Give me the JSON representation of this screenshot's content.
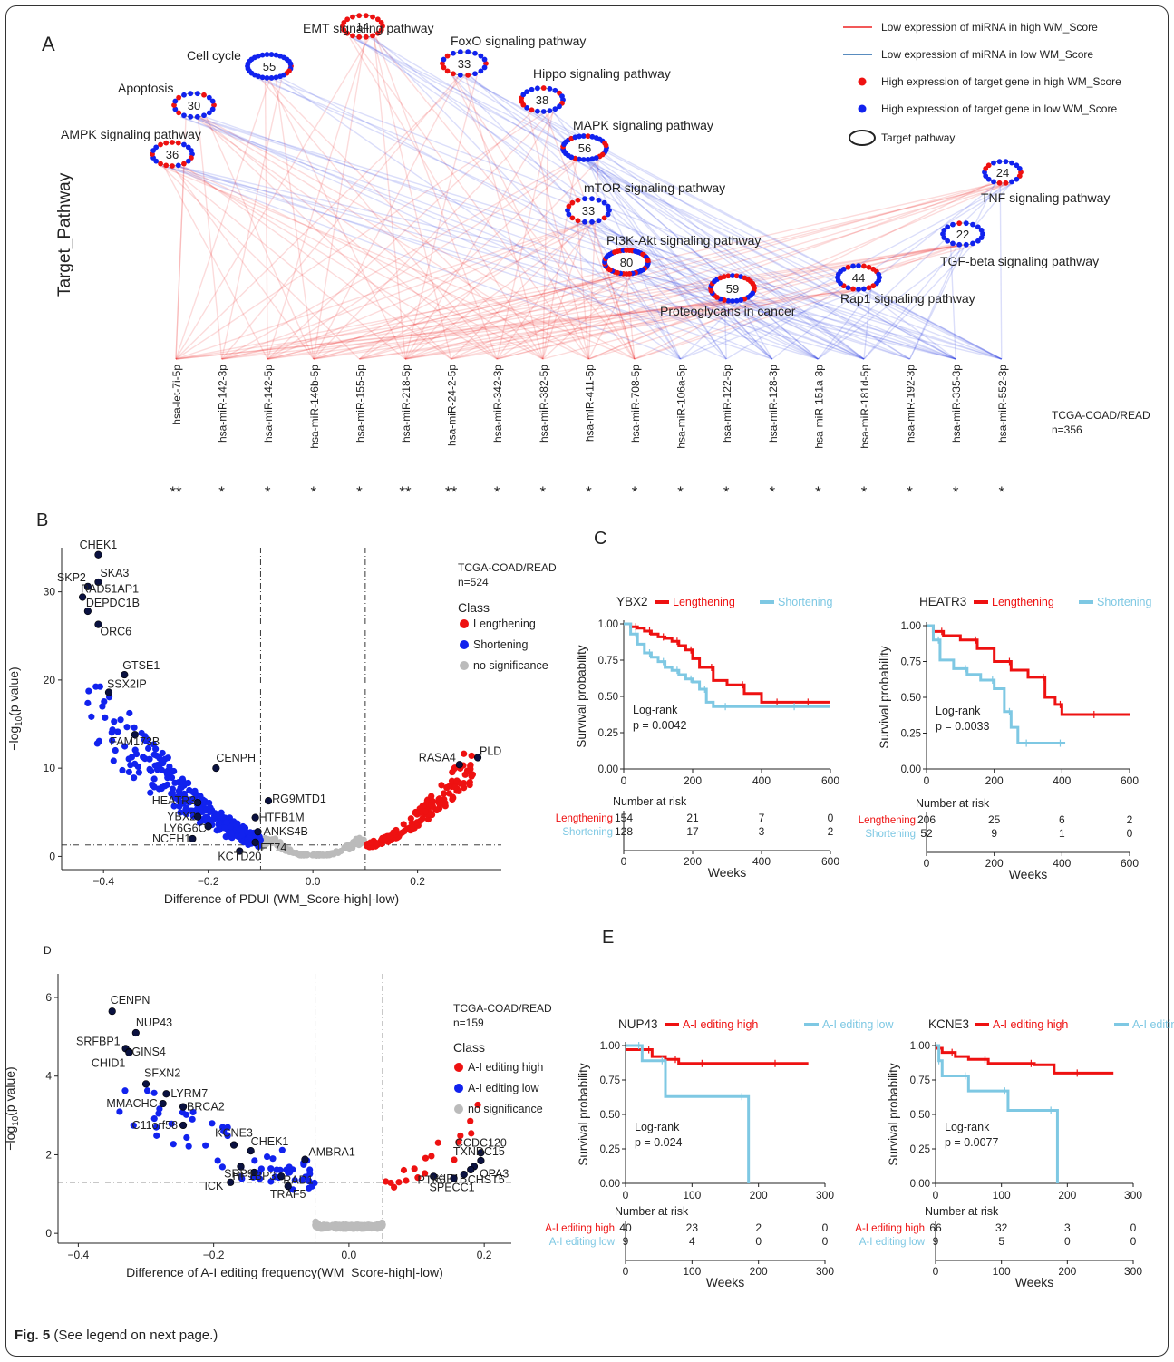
{
  "caption": {
    "label": "Fig. 5",
    "text": " (See legend on next page.)"
  },
  "panel_labels": {
    "a": "A",
    "b": "B",
    "c": "C",
    "d": "D",
    "e": "E"
  },
  "panel_a": {
    "ylabel": "Target_Pathway",
    "dataset": [
      "TCGA-COAD/READ",
      "n=356"
    ],
    "legend": [
      {
        "kind": "line",
        "color": "#ee2222",
        "label": "Low expression of miRNA in high WM_Score"
      },
      {
        "kind": "line",
        "color": "#2266aa",
        "label": "Low expression of miRNA in low WM_Score"
      },
      {
        "kind": "dot",
        "color": "#ee1111",
        "label": "High expression of target gene in high WM_Score"
      },
      {
        "kind": "dot",
        "color": "#1122ee",
        "label": "High expression of target gene in low WM_Score"
      },
      {
        "kind": "ellipse",
        "color": "#222222",
        "label": "Target pathway"
      }
    ],
    "pathways": [
      {
        "name": "AMPK signaling pathway",
        "count": "36",
        "red_frac": 0.5
      },
      {
        "name": "Apoptosis",
        "count": "30",
        "red_frac": 0.5
      },
      {
        "name": "Cell cycle",
        "count": "55",
        "red_frac": 0.2
      },
      {
        "name": "EMT signaling pathway",
        "count": "14",
        "red_frac": 0.9
      },
      {
        "name": "FoxO signaling pathway",
        "count": "33",
        "red_frac": 0.35
      },
      {
        "name": "Hippo signaling pathway",
        "count": "38",
        "red_frac": 0.35
      },
      {
        "name": "MAPK signaling pathway",
        "count": "56",
        "red_frac": 0.4
      },
      {
        "name": "mTOR signaling pathway",
        "count": "33",
        "red_frac": 0.35
      },
      {
        "name": "PI3K-Akt signaling pathway",
        "count": "80",
        "red_frac": 0.6
      },
      {
        "name": "Proteoglycans in cancer",
        "count": "59",
        "red_frac": 0.55
      },
      {
        "name": "Rap1 signaling pathway",
        "count": "44",
        "red_frac": 0.3
      },
      {
        "name": "TNF signaling pathway",
        "count": "24",
        "red_frac": 0.3
      },
      {
        "name": "TGF-beta signaling pathway",
        "count": "22",
        "red_frac": 0.2
      }
    ],
    "mirnas": [
      {
        "name": "hsa-let-7i-5p",
        "sig": "**",
        "group": "high"
      },
      {
        "name": "hsa-miR-142-3p",
        "sig": "*",
        "group": "high"
      },
      {
        "name": "hsa-miR-142-5p",
        "sig": "*",
        "group": "high"
      },
      {
        "name": "hsa-miR-146b-5p",
        "sig": "*",
        "group": "high"
      },
      {
        "name": "hsa-miR-155-5p",
        "sig": "*",
        "group": "high"
      },
      {
        "name": "hsa-miR-218-5p",
        "sig": "**",
        "group": "high"
      },
      {
        "name": "hsa-miR-24-2-5p",
        "sig": "**",
        "group": "high"
      },
      {
        "name": "hsa-miR-342-3p",
        "sig": "*",
        "group": "high"
      },
      {
        "name": "hsa-miR-382-5p",
        "sig": "*",
        "group": "high"
      },
      {
        "name": "hsa-miR-411-5p",
        "sig": "*",
        "group": "high"
      },
      {
        "name": "hsa-miR-708-5p",
        "sig": "*",
        "group": "high"
      },
      {
        "name": "hsa-miR-106a-5p",
        "sig": "*",
        "group": "low"
      },
      {
        "name": "hsa-miR-122-5p",
        "sig": "*",
        "group": "low"
      },
      {
        "name": "hsa-miR-128-3p",
        "sig": "*",
        "group": "low"
      },
      {
        "name": "hsa-miR-151a-3p",
        "sig": "*",
        "group": "low"
      },
      {
        "name": "hsa-miR-181d-5p",
        "sig": "*",
        "group": "low"
      },
      {
        "name": "hsa-miR-192-3p",
        "sig": "*",
        "group": "low"
      },
      {
        "name": "hsa-miR-335-3p",
        "sig": "*",
        "group": "low"
      },
      {
        "name": "hsa-miR-552-3p",
        "sig": "*",
        "group": "low"
      }
    ]
  },
  "chart_data": [
    {
      "type": "scatter",
      "panel": "B",
      "xlabel": "Difference of PDUI (WM_Score-high|-low)",
      "ylabel_main": "−log",
      "ylabel_sub": "10",
      "ylabel_tail": "(p value)",
      "xlim": [
        -0.48,
        0.36
      ],
      "ylim": [
        -1.5,
        35
      ],
      "xticks": [
        -0.4,
        -0.2,
        0.0,
        0.2
      ],
      "yticks": [
        0,
        10,
        20,
        30
      ],
      "xtick_labels": [
        "−0.4",
        "−0.2",
        "0.0",
        "0.2"
      ],
      "vlines": [
        -0.1,
        0.1
      ],
      "hline": 1.3,
      "dataset": [
        "TCGA-COAD/READ",
        "n=524"
      ],
      "legend_title": "Class",
      "classes": [
        {
          "label": "Lengthening",
          "color": "#ee1111"
        },
        {
          "label": "Shortening",
          "color": "#1122ee"
        },
        {
          "label": "no significance",
          "color": "#bbbbbb"
        }
      ],
      "labeled_points": [
        {
          "label": "CHEK1",
          "x": -0.41,
          "y": 34.2
        },
        {
          "label": "SKP2",
          "x": -0.43,
          "y": 30.6
        },
        {
          "label": "SKA3",
          "x": -0.41,
          "y": 31.1
        },
        {
          "label": "RAD51AP1",
          "x": -0.44,
          "y": 29.4
        },
        {
          "label": "DEPDC1B",
          "x": -0.43,
          "y": 27.8
        },
        {
          "label": "ORC6",
          "x": -0.41,
          "y": 26.3
        },
        {
          "label": "GTSE1",
          "x": -0.36,
          "y": 20.6
        },
        {
          "label": "SSX2IP",
          "x": -0.39,
          "y": 18.6
        },
        {
          "label": "FAM173B",
          "x": -0.34,
          "y": 13.8
        },
        {
          "label": "CENPH",
          "x": -0.185,
          "y": 10.0
        },
        {
          "label": "HEATR3",
          "x": -0.22,
          "y": 6.1
        },
        {
          "label": "YBX2",
          "x": -0.22,
          "y": 4.5
        },
        {
          "label": "LY6G6C",
          "x": -0.2,
          "y": 3.4
        },
        {
          "label": "NCEH1",
          "x": -0.23,
          "y": 2.0
        },
        {
          "label": "KCTD20",
          "x": -0.14,
          "y": 0.6
        },
        {
          "label": "RG9MTD1",
          "x": -0.085,
          "y": 6.3
        },
        {
          "label": "HTFB1M",
          "x": -0.11,
          "y": 4.4
        },
        {
          "label": "ANKS4B",
          "x": -0.105,
          "y": 2.8
        },
        {
          "label": "IFT74",
          "x": -0.11,
          "y": 1.6
        },
        {
          "label": "RASA4",
          "x": 0.28,
          "y": 10.4
        },
        {
          "label": "PLD",
          "x": 0.315,
          "y": 11.2
        }
      ]
    },
    {
      "type": "line",
      "subtype": "kaplan-meier",
      "panel": "C-left",
      "gene": "YBX2",
      "xlabel": "Weeks",
      "ylabel": "Survival probability",
      "xlim": [
        0,
        600
      ],
      "ylim": [
        0,
        1
      ],
      "xticks": [
        0,
        200,
        400,
        600
      ],
      "yticks": [
        "0.00",
        "0.25",
        "0.50",
        "0.75",
        "1.00"
      ],
      "pvalue": [
        "Log-rank",
        "p = 0.0042"
      ],
      "risk_title": "Number at risk",
      "series": [
        {
          "name": "Lengthening",
          "color": "#ee1111",
          "x": [
            0,
            20,
            40,
            60,
            80,
            100,
            120,
            140,
            160,
            180,
            200,
            220,
            260,
            300,
            350,
            400,
            450,
            500,
            540,
            600
          ],
          "y": [
            1,
            0.98,
            0.97,
            0.95,
            0.93,
            0.91,
            0.9,
            0.88,
            0.85,
            0.82,
            0.76,
            0.7,
            0.61,
            0.58,
            0.52,
            0.46,
            0.46,
            0.46,
            0.46,
            0.46
          ],
          "risk": [
            "154",
            "21",
            "7",
            "0"
          ]
        },
        {
          "name": "Shortening",
          "color": "#7ec8e3",
          "x": [
            0,
            20,
            40,
            60,
            80,
            100,
            120,
            140,
            160,
            180,
            200,
            220,
            240,
            260,
            300,
            400,
            500,
            600
          ],
          "y": [
            1,
            0.93,
            0.86,
            0.8,
            0.77,
            0.74,
            0.7,
            0.68,
            0.65,
            0.62,
            0.6,
            0.55,
            0.46,
            0.43,
            0.43,
            0.43,
            0.43,
            0.43
          ],
          "risk": [
            "128",
            "17",
            "3",
            "2"
          ]
        }
      ]
    },
    {
      "type": "line",
      "subtype": "kaplan-meier",
      "panel": "C-right",
      "gene": "HEATR3",
      "xlabel": "Weeks",
      "ylabel": "Survival probability",
      "xlim": [
        0,
        600
      ],
      "ylim": [
        0,
        1
      ],
      "xticks": [
        0,
        200,
        400,
        600
      ],
      "yticks": [
        "0.00",
        "0.25",
        "0.50",
        "0.75",
        "1.00"
      ],
      "pvalue": [
        "Log-rank",
        "p = 0.0033"
      ],
      "risk_title": "Number at risk",
      "series": [
        {
          "name": "Lengthening",
          "color": "#ee1111",
          "x": [
            0,
            20,
            50,
            100,
            150,
            200,
            250,
            300,
            350,
            380,
            400,
            450,
            500,
            600
          ],
          "y": [
            1,
            0.96,
            0.93,
            0.9,
            0.84,
            0.75,
            0.69,
            0.64,
            0.5,
            0.45,
            0.38,
            0.38,
            0.38,
            0.38
          ],
          "risk": [
            "206",
            "25",
            "6",
            "2"
          ]
        },
        {
          "name": "Shortening",
          "color": "#7ec8e3",
          "x": [
            0,
            20,
            40,
            80,
            120,
            160,
            200,
            230,
            250,
            270,
            300,
            350,
            400,
            410
          ],
          "y": [
            1,
            0.9,
            0.76,
            0.7,
            0.66,
            0.62,
            0.56,
            0.4,
            0.29,
            0.18,
            0.18,
            0.18,
            0.18,
            0.18
          ],
          "risk": [
            "52",
            "9",
            "1",
            "0"
          ]
        }
      ]
    },
    {
      "type": "scatter",
      "panel": "D",
      "xlabel": "Difference of A-I editing frequency(WM_Score-high|-low)",
      "ylabel_main": "−log",
      "ylabel_sub": "10",
      "ylabel_tail": "(p value)",
      "xlim": [
        -0.43,
        0.24
      ],
      "ylim": [
        -0.25,
        6.6
      ],
      "xticks": [
        -0.4,
        -0.2,
        0.0,
        0.2
      ],
      "yticks": [
        0,
        2,
        4,
        6
      ],
      "xtick_labels": [
        "−0.4",
        "−0.2",
        "0.0",
        "0.2"
      ],
      "vlines": [
        -0.05,
        0.05
      ],
      "hline": 1.3,
      "dataset": [
        "TCGA-COAD/READ",
        "n=159"
      ],
      "legend_title": "Class",
      "classes": [
        {
          "label": "A-I editing high",
          "color": "#ee1111"
        },
        {
          "label": "A-I editing low",
          "color": "#1122ee"
        },
        {
          "label": "no significance",
          "color": "#bbbbbb"
        }
      ],
      "labeled_points": [
        {
          "label": "CENPN",
          "x": -0.35,
          "y": 5.65
        },
        {
          "label": "NUP43",
          "x": -0.315,
          "y": 5.1
        },
        {
          "label": "SRFBP1",
          "x": -0.33,
          "y": 4.7
        },
        {
          "label": "GINS4",
          "x": -0.325,
          "y": 4.62
        },
        {
          "label": "CHID1",
          "x": -0.325,
          "y": 4.6
        },
        {
          "label": "SFXN2",
          "x": -0.3,
          "y": 3.8
        },
        {
          "label": "LYRM7",
          "x": -0.27,
          "y": 3.55
        },
        {
          "label": "MMACHC",
          "x": -0.275,
          "y": 3.3
        },
        {
          "label": "BRCA2",
          "x": -0.245,
          "y": 3.22
        },
        {
          "label": "C11orf58",
          "x": -0.245,
          "y": 2.75
        },
        {
          "label": "KCNE3",
          "x": -0.17,
          "y": 2.25
        },
        {
          "label": "CHEK1",
          "x": -0.145,
          "y": 2.1
        },
        {
          "label": "SRP9",
          "x": -0.16,
          "y": 1.7
        },
        {
          "label": "HP1BP3",
          "x": -0.14,
          "y": 1.55
        },
        {
          "label": "RAD1",
          "x": -0.1,
          "y": 1.45
        },
        {
          "label": "ICK",
          "x": -0.175,
          "y": 1.3
        },
        {
          "label": "TRAF5",
          "x": -0.09,
          "y": 1.2
        },
        {
          "label": "AMBRA1",
          "x": -0.065,
          "y": 1.88
        },
        {
          "label": "CCDC120",
          "x": 0.195,
          "y": 2.05
        },
        {
          "label": "TXNDC15",
          "x": 0.195,
          "y": 1.85
        },
        {
          "label": "OPA3",
          "x": 0.185,
          "y": 1.7
        },
        {
          "label": "KIF1B",
          "x": 0.18,
          "y": 1.62
        },
        {
          "label": "CHST5",
          "x": 0.17,
          "y": 1.5
        },
        {
          "label": "PTK6",
          "x": 0.125,
          "y": 1.45
        },
        {
          "label": "SPECC1",
          "x": 0.155,
          "y": 1.4
        }
      ]
    },
    {
      "type": "line",
      "subtype": "kaplan-meier",
      "panel": "E-left",
      "gene": "NUP43",
      "xlabel": "Weeks",
      "ylabel": "Survival probability",
      "xlim": [
        0,
        300
      ],
      "ylim": [
        0,
        1
      ],
      "xticks": [
        0,
        100,
        200,
        300
      ],
      "yticks": [
        "0.00",
        "0.25",
        "0.50",
        "0.75",
        "1.00"
      ],
      "pvalue": [
        "Log-rank",
        "p = 0.024"
      ],
      "risk_title": "Number at risk",
      "series": [
        {
          "name": "A-I editing high",
          "color": "#ee1111",
          "x": [
            0,
            20,
            40,
            60,
            80,
            100,
            120,
            180,
            230,
            275
          ],
          "y": [
            0.97,
            0.97,
            0.92,
            0.9,
            0.87,
            0.87,
            0.87,
            0.87,
            0.87,
            0.87
          ],
          "risk": [
            "40",
            "23",
            "2",
            "0"
          ]
        },
        {
          "name": "A-I editing low",
          "color": "#7ec8e3",
          "x": [
            0,
            20,
            25,
            55,
            60,
            100,
            180,
            185
          ],
          "y": [
            1,
            1,
            0.89,
            0.89,
            0.63,
            0.63,
            0.63,
            0.0
          ],
          "risk": [
            "9",
            "4",
            "0",
            "0"
          ]
        }
      ]
    },
    {
      "type": "line",
      "subtype": "kaplan-meier",
      "panel": "E-right",
      "gene": "KCNE3",
      "xlabel": "Weeks",
      "ylabel": "Survival probability",
      "xlim": [
        0,
        300
      ],
      "ylim": [
        0,
        1
      ],
      "xticks": [
        0,
        100,
        200,
        300
      ],
      "yticks": [
        "0.00",
        "0.25",
        "0.50",
        "0.75",
        "1.00"
      ],
      "pvalue": [
        "Log-rank",
        "p = 0.0077"
      ],
      "risk_title": "Number at risk",
      "series": [
        {
          "name": "A-I editing high",
          "color": "#ee1111",
          "x": [
            0,
            10,
            30,
            50,
            80,
            120,
            150,
            180,
            220,
            270
          ],
          "y": [
            0.98,
            0.95,
            0.92,
            0.9,
            0.87,
            0.87,
            0.86,
            0.8,
            0.8,
            0.8
          ],
          "risk": [
            "66",
            "32",
            "3",
            "0"
          ]
        },
        {
          "name": "A-I editing low",
          "color": "#7ec8e3",
          "x": [
            0,
            5,
            10,
            40,
            50,
            100,
            110,
            150,
            180,
            185
          ],
          "y": [
            1,
            0.89,
            0.78,
            0.78,
            0.67,
            0.67,
            0.53,
            0.53,
            0.53,
            0.0
          ],
          "risk": [
            "9",
            "5",
            "0",
            "0"
          ]
        }
      ]
    }
  ]
}
